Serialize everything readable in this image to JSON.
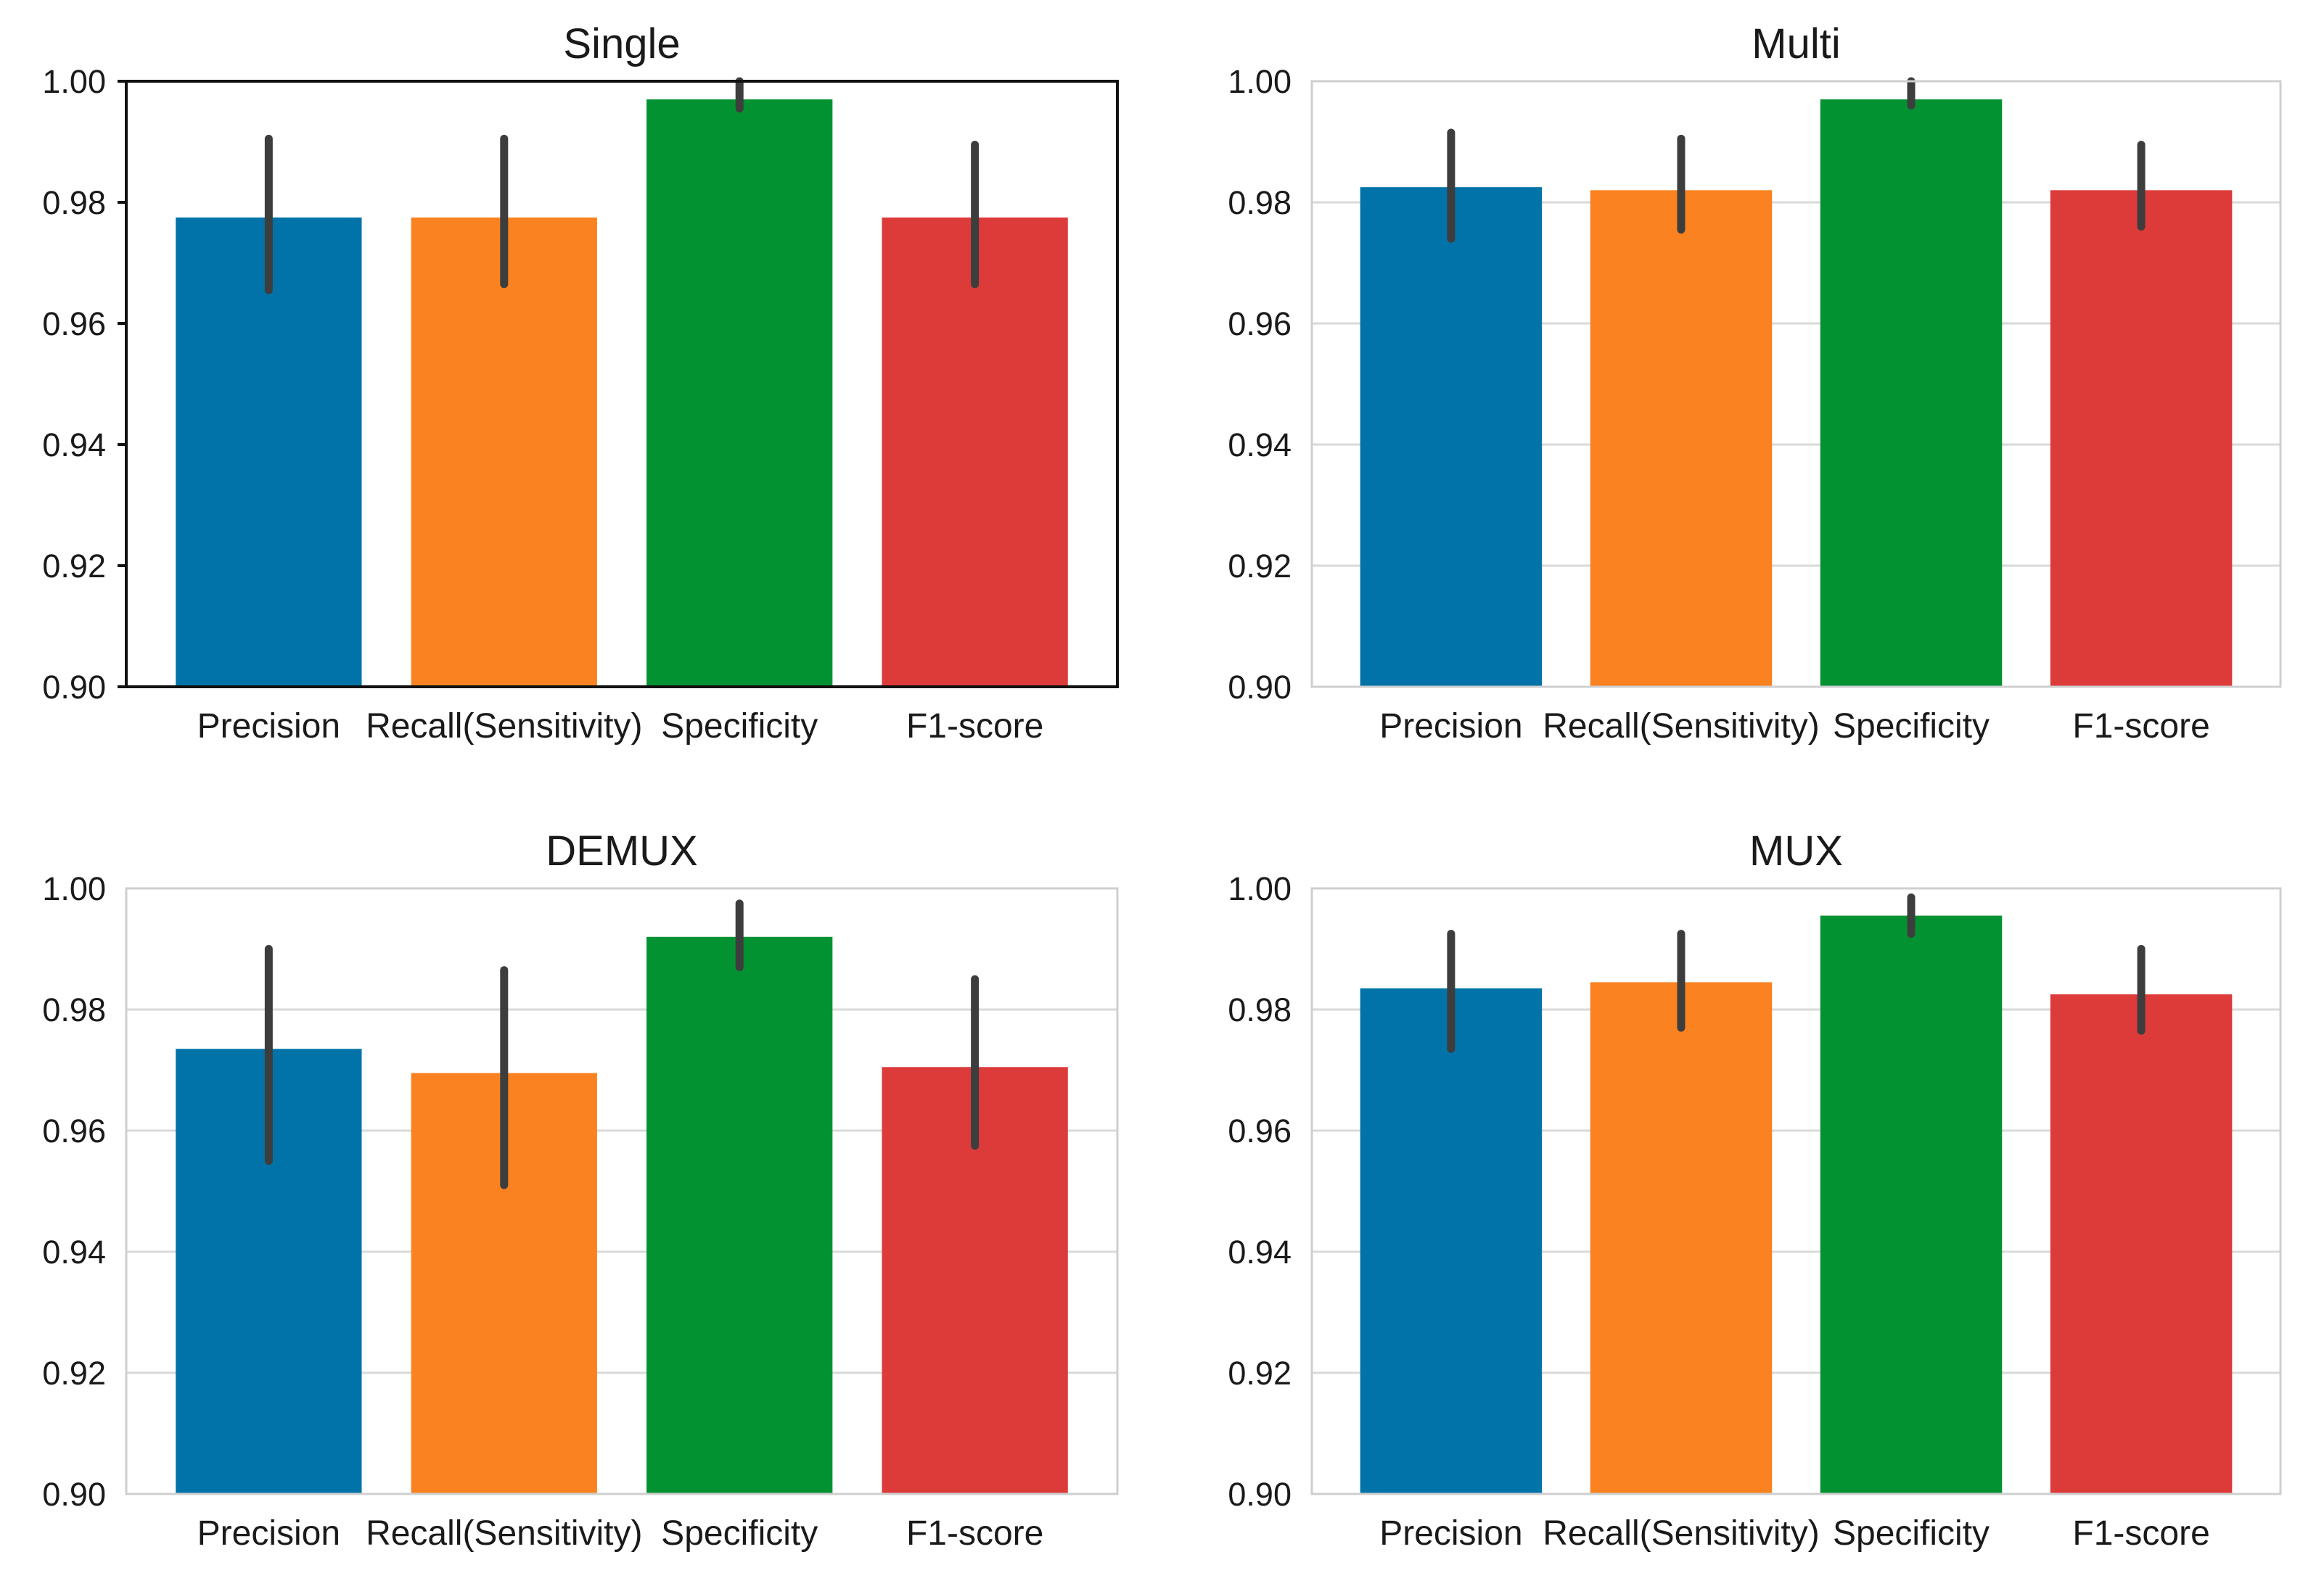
{
  "chart_data": [
    {
      "type": "bar",
      "title": "Single",
      "categories": [
        "Precision",
        "Recall(Sensitivity)",
        "Specificity",
        "F1-score"
      ],
      "values": [
        0.9775,
        0.9775,
        0.997,
        0.9775
      ],
      "error_low": [
        0.9655,
        0.9665,
        0.9955,
        0.9665
      ],
      "error_high": [
        0.9905,
        0.9905,
        1.0,
        0.9895
      ],
      "ylim": [
        0.9,
        1.0
      ],
      "yticks": [
        "0.90",
        "0.92",
        "0.94",
        "0.96",
        "0.98",
        "1.00"
      ],
      "grid": false,
      "frame": "dark"
    },
    {
      "type": "bar",
      "title": "Multi",
      "categories": [
        "Precision",
        "Recall(Sensitivity)",
        "Specificity",
        "F1-score"
      ],
      "values": [
        0.9825,
        0.982,
        0.997,
        0.982
      ],
      "error_low": [
        0.974,
        0.9755,
        0.996,
        0.976
      ],
      "error_high": [
        0.9915,
        0.9905,
        1.0,
        0.9895
      ],
      "ylim": [
        0.9,
        1.0
      ],
      "yticks": [
        "0.90",
        "0.92",
        "0.94",
        "0.96",
        "0.98",
        "1.00"
      ],
      "grid": true,
      "frame": "light"
    },
    {
      "type": "bar",
      "title": "DEMUX",
      "categories": [
        "Precision",
        "Recall(Sensitivity)",
        "Specificity",
        "F1-score"
      ],
      "values": [
        0.9735,
        0.9695,
        0.992,
        0.9705
      ],
      "error_low": [
        0.955,
        0.951,
        0.987,
        0.9575
      ],
      "error_high": [
        0.99,
        0.9865,
        0.9975,
        0.985
      ],
      "ylim": [
        0.9,
        1.0
      ],
      "yticks": [
        "0.90",
        "0.92",
        "0.94",
        "0.96",
        "0.98",
        "1.00"
      ],
      "grid": true,
      "frame": "light"
    },
    {
      "type": "bar",
      "title": "MUX",
      "categories": [
        "Precision",
        "Recall(Sensitivity)",
        "Specificity",
        "F1-score"
      ],
      "values": [
        0.9835,
        0.9845,
        0.9955,
        0.9825
      ],
      "error_low": [
        0.9735,
        0.977,
        0.9925,
        0.9765
      ],
      "error_high": [
        0.9925,
        0.9925,
        0.9985,
        0.99
      ],
      "ylim": [
        0.9,
        1.0
      ],
      "yticks": [
        "0.90",
        "0.92",
        "0.94",
        "0.96",
        "0.98",
        "1.00"
      ],
      "grid": true,
      "frame": "light"
    }
  ],
  "colors": {
    "bars": [
      "#0173a8",
      "#fa8220",
      "#039231",
      "#dc3b3a"
    ],
    "error_bar": "#3d3d3d",
    "grid": "#d9d9d9",
    "frame_light": "#cfcfcf",
    "frame_dark": "#111111"
  }
}
